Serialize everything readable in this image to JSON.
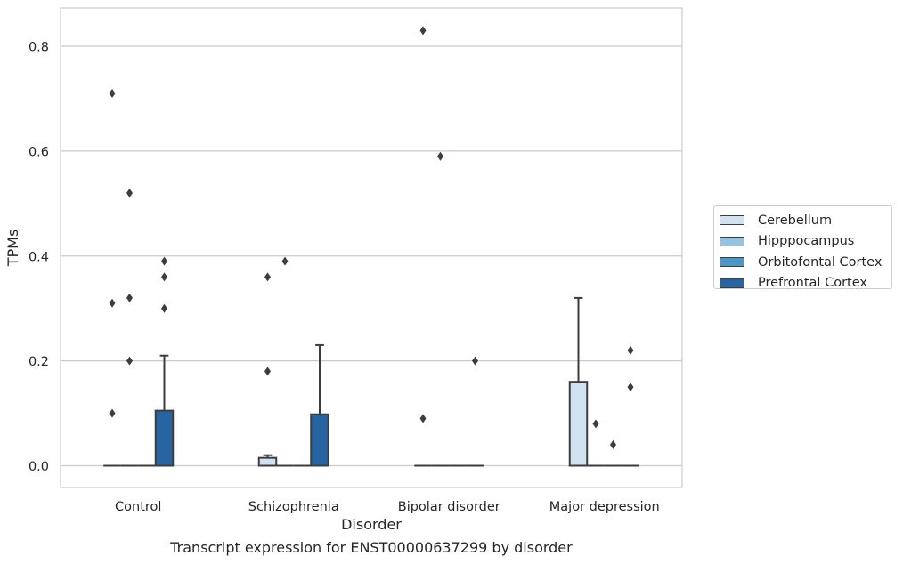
{
  "caption": "Transcript expression for ENST00000637299 by disorder",
  "chart_data": {
    "type": "box",
    "title": "",
    "xlabel": "Disorder",
    "ylabel": "TPMs",
    "ylim": [
      -0.04,
      0.87
    ],
    "yticks": [
      0.0,
      0.2,
      0.4,
      0.6,
      0.8
    ],
    "ytick_labels": [
      "0.0",
      "0.2",
      "0.4",
      "0.6",
      "0.8"
    ],
    "grid": "horizontal",
    "legend_placement": "right",
    "categories": [
      "Control",
      "Schizophrenia",
      "Bipolar disorder",
      "Major depression"
    ],
    "series": [
      {
        "name": "Cerebellum",
        "color": "#d0e1f2",
        "boxes": [
          {
            "q1": 0,
            "median": 0,
            "q3": 0,
            "whisker_low": 0,
            "whisker_high": 0,
            "outliers": [
              0.1,
              0.31,
              0.71
            ]
          },
          {
            "q1": 0,
            "median": 0,
            "q3": 0.015,
            "whisker_low": 0,
            "whisker_high": 0.02,
            "outliers": [
              0.18,
              0.36
            ]
          },
          {
            "q1": 0,
            "median": 0,
            "q3": 0,
            "whisker_low": 0,
            "whisker_high": 0,
            "outliers": [
              0.09,
              0.83
            ]
          },
          {
            "q1": 0,
            "median": 0,
            "q3": 0.16,
            "whisker_low": 0,
            "whisker_high": 0.32,
            "outliers": []
          }
        ]
      },
      {
        "name": "Hipppocampus",
        "color": "#94c4df",
        "boxes": [
          {
            "q1": 0,
            "median": 0,
            "q3": 0,
            "whisker_low": 0,
            "whisker_high": 0,
            "outliers": [
              0.2,
              0.32,
              0.52
            ]
          },
          {
            "q1": 0,
            "median": 0,
            "q3": 0,
            "whisker_low": 0,
            "whisker_high": 0,
            "outliers": [
              0.39
            ]
          },
          {
            "q1": 0,
            "median": 0,
            "q3": 0,
            "whisker_low": 0,
            "whisker_high": 0,
            "outliers": [
              0.59
            ]
          },
          {
            "q1": 0,
            "median": 0,
            "q3": 0,
            "whisker_low": 0,
            "whisker_high": 0,
            "outliers": [
              0.08
            ]
          }
        ]
      },
      {
        "name": "Orbitofontal Cortex",
        "color": "#4a98c9",
        "boxes": [
          {
            "q1": 0,
            "median": 0,
            "q3": 0,
            "whisker_low": 0,
            "whisker_high": 0,
            "outliers": []
          },
          {
            "q1": 0,
            "median": 0,
            "q3": 0,
            "whisker_low": 0,
            "whisker_high": 0,
            "outliers": []
          },
          {
            "q1": 0,
            "median": 0,
            "q3": 0,
            "whisker_low": 0,
            "whisker_high": 0,
            "outliers": []
          },
          {
            "q1": 0,
            "median": 0,
            "q3": 0,
            "whisker_low": 0,
            "whisker_high": 0,
            "outliers": [
              0.04
            ]
          }
        ]
      },
      {
        "name": "Prefrontal Cortex",
        "color": "#2764a2",
        "boxes": [
          {
            "q1": 0,
            "median": 0,
            "q3": 0.105,
            "whisker_low": 0,
            "whisker_high": 0.21,
            "outliers": [
              0.3,
              0.36,
              0.39
            ]
          },
          {
            "q1": 0,
            "median": 0,
            "q3": 0.098,
            "whisker_low": 0,
            "whisker_high": 0.23,
            "outliers": []
          },
          {
            "q1": 0,
            "median": 0,
            "q3": 0,
            "whisker_low": 0,
            "whisker_high": 0,
            "outliers": [
              0.2
            ]
          },
          {
            "q1": 0,
            "median": 0,
            "q3": 0,
            "whisker_low": 0,
            "whisker_high": 0,
            "outliers": [
              0.15,
              0.22
            ]
          }
        ]
      }
    ]
  }
}
